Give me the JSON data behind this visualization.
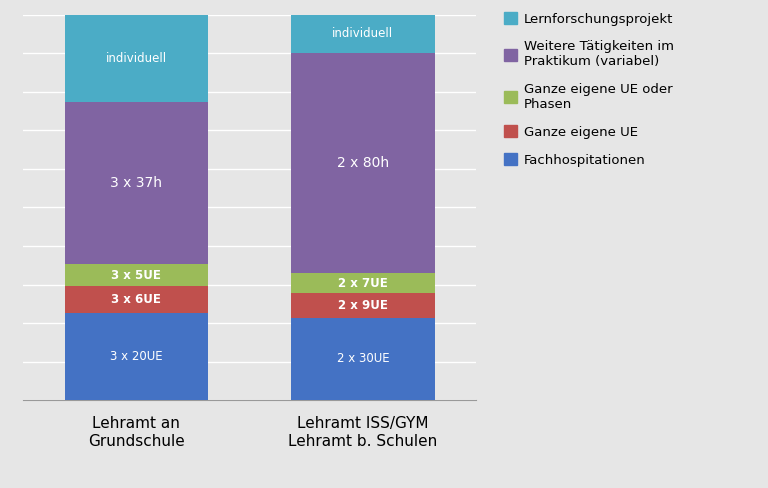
{
  "categories": [
    "Lehramt an\nGrundschule",
    "Lehramt ISS/GYM\nLehramt b. Schulen"
  ],
  "segments": [
    {
      "label": "Fachhospitationen",
      "color": "#4472C4",
      "values": [
        20,
        30
      ],
      "texts": [
        "3 x 20UE",
        "2 x 30UE"
      ]
    },
    {
      "label": "Ganze eigene UE",
      "color": "#C0504D",
      "values": [
        6,
        9
      ],
      "texts": [
        "3 x 6UE",
        "2 x 9UE"
      ]
    },
    {
      "label": "Ganze eigene UE oder\nPhasen",
      "color": "#9BBB59",
      "values": [
        5,
        7
      ],
      "texts": [
        "3 x 5UE",
        "2 x 7UE"
      ]
    },
    {
      "label": "Weitere Tätigkeiten im\nPraktikum (variabel)",
      "color": "#8064A2",
      "values": [
        37,
        80
      ],
      "texts": [
        "3 x 37h",
        "2 x 80h"
      ]
    },
    {
      "label": "Lernforschungsprojekt",
      "color": "#4BACC6",
      "values": [
        20,
        14
      ],
      "texts": [
        "individuell",
        "individuell"
      ]
    }
  ],
  "bar_width": 0.38,
  "bar_positions": [
    0.3,
    0.9
  ],
  "background_color": "#E6E6E6",
  "plot_area_color": "#E6E6E6",
  "text_color_white": "#FFFFFF",
  "legend_order": [
    4,
    3,
    2,
    1,
    0
  ],
  "figsize": [
    7.68,
    4.88
  ],
  "dpi": 100,
  "grid_color": "#FFFFFF",
  "bottom_spine_color": "#999999",
  "xlabel_fontsize": 11,
  "label_fontsize_small": 8.5,
  "label_fontsize_large": 10
}
